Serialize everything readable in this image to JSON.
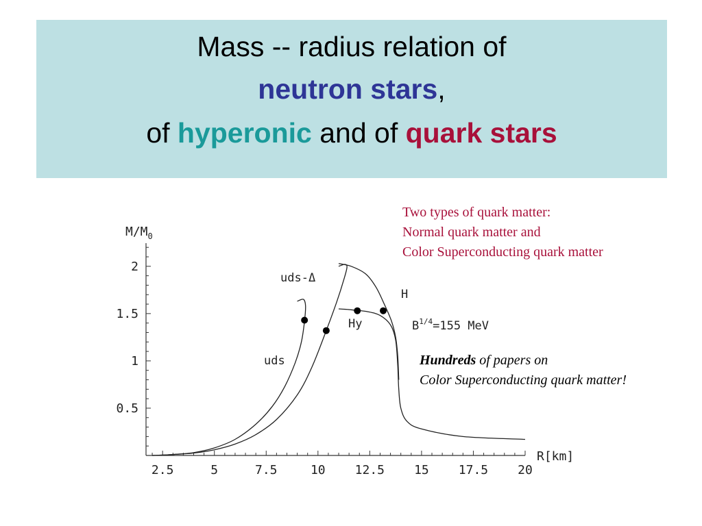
{
  "title": {
    "line1": "Mass -- radius relation of",
    "line2_highlight": "neutron stars",
    "line2_suffix": ",",
    "line3_prefix": "of ",
    "line3_highlight1": "hyperonic",
    "line3_middle": " and of ",
    "line3_highlight2": "quark stars"
  },
  "notes": {
    "top": [
      "Two types of quark matter:",
      "Normal quark matter and",
      "Color Superconducting quark matter"
    ],
    "bottom_emph": "Hundreds",
    "bottom_rest": " of papers on",
    "bottom_line2": "Color Superconducting quark matter!"
  },
  "colors": {
    "title_bg": "#bde0e3",
    "neutron": "#2e3596",
    "hyperonic": "#1a9a9a",
    "quark": "#a8103a"
  },
  "chart_data": {
    "type": "line",
    "ylabel_base": "M/M",
    "ylabel_sub": "0",
    "xlabel": "R[km]",
    "xlim": [
      1.7,
      20
    ],
    "ylim": [
      0,
      2.1
    ],
    "x_ticks": [
      "2.5",
      "5",
      "7.5",
      "10",
      "12.5",
      "15",
      "17.5",
      "20"
    ],
    "y_ticks": [
      "0.5",
      "1",
      "1.5",
      "2"
    ],
    "annotation_b_base": "B",
    "annotation_b_exp": "1/4",
    "annotation_b_rest": "=155 MeV",
    "series": [
      {
        "name": "uds",
        "x": [
          2.0,
          3.0,
          4.0,
          5.0,
          6.0,
          7.0,
          7.8,
          8.4,
          8.9,
          9.2,
          9.35,
          9.4,
          9.3,
          9.0
        ],
        "y": [
          0.0,
          0.01,
          0.03,
          0.08,
          0.17,
          0.33,
          0.52,
          0.73,
          0.98,
          1.2,
          1.42,
          1.58,
          1.65,
          1.63
        ]
      },
      {
        "name": "uds-Δ",
        "x": [
          2.0,
          3.0,
          4.0,
          5.0,
          6.0,
          7.0,
          8.0,
          9.0,
          9.7,
          10.4,
          10.9,
          11.25,
          11.4,
          11.3,
          11.0
        ],
        "y": [
          0.0,
          0.01,
          0.025,
          0.06,
          0.12,
          0.22,
          0.38,
          0.64,
          0.93,
          1.32,
          1.62,
          1.86,
          1.99,
          2.02,
          2.0
        ]
      },
      {
        "name": "Hy",
        "x": [
          11.0,
          11.6,
          12.4,
          13.0,
          13.5,
          13.75,
          13.85,
          13.9,
          14.0,
          14.3,
          15.0,
          17.0,
          20.0
        ],
        "y": [
          1.55,
          1.54,
          1.52,
          1.48,
          1.38,
          1.22,
          0.95,
          0.7,
          0.5,
          0.36,
          0.28,
          0.2,
          0.17
        ]
      },
      {
        "name": "H",
        "x": [
          11.0,
          11.6,
          12.3,
          12.8,
          13.2,
          13.55,
          13.75,
          13.85,
          13.9
        ],
        "y": [
          2.03,
          2.0,
          1.92,
          1.78,
          1.6,
          1.42,
          1.25,
          1.05,
          0.8
        ]
      }
    ],
    "markers": [
      {
        "x": 9.35,
        "y": 1.43
      },
      {
        "x": 10.4,
        "y": 1.32
      },
      {
        "x": 11.9,
        "y": 1.53
      },
      {
        "x": 13.15,
        "y": 1.53
      }
    ],
    "curve_labels": [
      {
        "text": "uds",
        "x": 8.8,
        "y": 1.0
      },
      {
        "text": "uds-Δ",
        "x": 10.0,
        "y": 1.9
      },
      {
        "text": "Hy",
        "x": 12.0,
        "y": 1.38
      },
      {
        "text": "H",
        "x": 13.2,
        "y": 1.71
      }
    ]
  }
}
